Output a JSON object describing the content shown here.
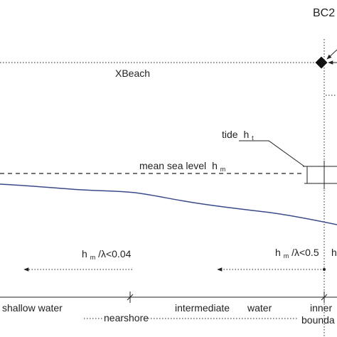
{
  "labels": {
    "boundary_condition": "BC2",
    "model": "XBeach",
    "tide": "tide",
    "tide_symbol": "h",
    "tide_subscript": "t",
    "mean_sea_level": "mean sea level",
    "msl_symbol": "h",
    "msl_subscript": "m",
    "ratio_symbol": "h",
    "ratio_subscript": "m",
    "ratio_shallow": "/λ<0.04",
    "ratio_intermediate": "/λ<0.5",
    "ratio_right_partial": "h",
    "zone_shallow": "shallow water",
    "zone_nearshore": "nearshore",
    "zone_intermediate": "intermediate",
    "zone_water": "water",
    "zone_inner": "inner",
    "zone_boundary": "bounda"
  },
  "colors": {
    "seabed_line": "#3b4a8a",
    "lines": "#222222"
  }
}
